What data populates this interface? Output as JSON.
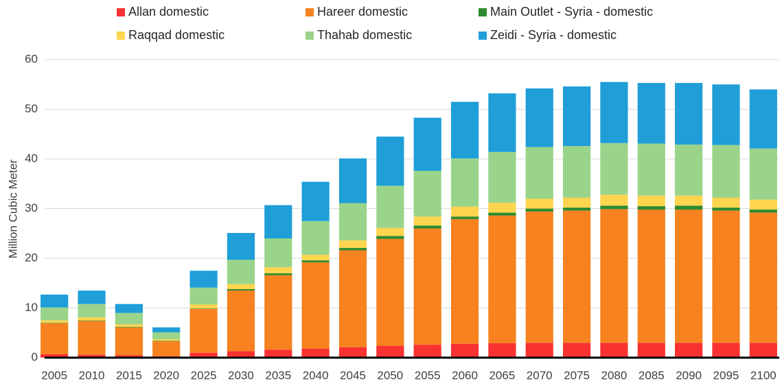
{
  "chart_data": {
    "type": "stacked_bar",
    "y_label": "Million Cubic Meter",
    "categories": [
      "2005",
      "2010",
      "2015",
      "2020",
      "2025",
      "2030",
      "2035",
      "2040",
      "2045",
      "2050",
      "2055",
      "2060",
      "2065",
      "2070",
      "2075",
      "2080",
      "2085",
      "2090",
      "2095",
      "2100"
    ],
    "series": [
      {
        "name": "Allan domestic",
        "color": "#fa3232",
        "values": [
          0.7,
          0.6,
          0.5,
          0.3,
          1.0,
          1.3,
          1.6,
          1.8,
          2.1,
          2.4,
          2.6,
          2.8,
          2.9,
          3.0,
          3.0,
          3.0,
          3.0,
          3.0,
          3.0,
          3.0
        ]
      },
      {
        "name": "Hareer domestic",
        "color": "#f7821f",
        "values": [
          6.2,
          6.8,
          5.6,
          3.0,
          8.8,
          12.2,
          15.0,
          17.4,
          19.5,
          21.5,
          23.4,
          25.1,
          25.7,
          26.4,
          26.6,
          26.9,
          26.8,
          26.8,
          26.6,
          26.2
        ]
      },
      {
        "name": "Main Outlet - Syria - domestic",
        "color": "#2e8b2e",
        "values": [
          0.1,
          0.1,
          0.1,
          0.1,
          0.1,
          0.3,
          0.4,
          0.4,
          0.5,
          0.6,
          0.6,
          0.5,
          0.6,
          0.6,
          0.6,
          0.7,
          0.7,
          0.8,
          0.6,
          0.6
        ]
      },
      {
        "name": "Raqqad domestic",
        "color": "#ffd54f",
        "values": [
          0.5,
          0.6,
          0.5,
          0.3,
          0.8,
          1.0,
          1.2,
          1.1,
          1.5,
          1.6,
          1.8,
          2.0,
          2.0,
          2.0,
          2.0,
          2.2,
          2.1,
          2.0,
          2.0,
          2.0
        ]
      },
      {
        "name": "Thahab domestic",
        "color": "#9ad48a",
        "values": [
          2.6,
          2.7,
          2.3,
          1.4,
          3.4,
          4.9,
          5.8,
          6.8,
          7.5,
          8.5,
          9.2,
          9.7,
          10.2,
          10.4,
          10.4,
          10.4,
          10.5,
          10.3,
          10.6,
          10.3
        ]
      },
      {
        "name": "Zeidi - Syria - domestic",
        "color": "#1f9ed8",
        "values": [
          2.6,
          2.7,
          1.8,
          1.0,
          3.4,
          5.4,
          6.7,
          7.9,
          9.0,
          9.9,
          10.7,
          11.4,
          11.8,
          11.8,
          12.0,
          12.3,
          12.2,
          12.4,
          12.2,
          11.9
        ]
      }
    ],
    "ylim": [
      0,
      60
    ],
    "yticks": [
      0,
      10,
      20,
      30,
      40,
      50,
      60
    ],
    "grid": true
  }
}
